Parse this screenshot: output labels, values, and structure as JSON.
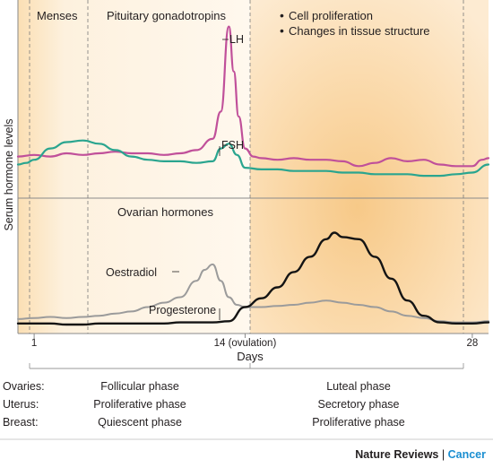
{
  "chart_data": {
    "type": "line",
    "ylabel": "Serum hormone levels",
    "xlabel": "Days",
    "x_ticks": [
      {
        "day": 1,
        "label": "1"
      },
      {
        "day": 14,
        "label": "14 (ovulation)"
      },
      {
        "day": 28,
        "label": "28"
      }
    ],
    "xlim": [
      0,
      29
    ],
    "period_labels": [
      "Menses",
      "Pituitary gonadotropins"
    ],
    "legend": [
      {
        "label": "Cell proliferation",
        "bullet": "•"
      },
      {
        "label": "Changes in tissue structure",
        "bullet": "•"
      }
    ],
    "panels": [
      {
        "title": "",
        "ylim": [
          0,
          100
        ],
        "series": [
          {
            "name": "LH",
            "color": "#c0509a",
            "x": [
              0,
              1,
              2,
              3,
              4,
              5,
              6,
              7,
              8,
              9,
              10,
              11,
              12,
              12.5,
              13,
              13.3,
              13.6,
              14,
              14.5,
              15,
              16,
              17,
              18,
              19,
              20,
              21,
              22,
              23,
              24,
              25,
              26,
              27,
              28,
              28.6,
              29
            ],
            "y": [
              17,
              18,
              17,
              19,
              18,
              19,
              20,
              19,
              19,
              18,
              19,
              21,
              28,
              45,
              98,
              70,
              42,
              22,
              17,
              16,
              15,
              16,
              15,
              15,
              14,
              11,
              13,
              16,
              14,
              15,
              12,
              11,
              11,
              15,
              16
            ]
          },
          {
            "name": "FSH",
            "color": "#2aa58f",
            "x": [
              0,
              0.5,
              1,
              2,
              3,
              4,
              5,
              6,
              7,
              8,
              9,
              10,
              11,
              12,
              12.5,
              13,
              13.5,
              14,
              15,
              16,
              17,
              18,
              19,
              20,
              21,
              22,
              23,
              24,
              25,
              26,
              27,
              28,
              29
            ],
            "y": [
              12,
              13,
              15,
              22,
              26,
              27,
              25,
              21,
              17,
              15,
              14,
              14,
              13,
              14,
              22,
              25,
              18,
              10,
              9,
              9,
              8,
              8,
              8,
              7,
              7,
              6,
              6,
              6,
              5,
              5,
              6,
              7,
              12
            ]
          }
        ]
      },
      {
        "title": "Ovarian hormones",
        "ylim": [
          0,
          100
        ],
        "series": [
          {
            "name": "Oestradiol",
            "color": "#9b9b9b",
            "x": [
              0,
              1,
              2,
              3,
              4,
              5,
              6,
              7,
              8,
              9,
              10,
              11,
              11.5,
              12,
              12.5,
              13,
              13.5,
              14,
              15,
              16,
              17,
              18,
              19,
              20,
              21,
              22,
              23,
              24,
              25,
              26,
              27,
              28,
              29
            ],
            "y": [
              5,
              6,
              7,
              6,
              7,
              8,
              10,
              12,
              16,
              20,
              25,
              40,
              50,
              55,
              40,
              25,
              18,
              16,
              16,
              17,
              18,
              20,
              22,
              20,
              18,
              16,
              12,
              8,
              6,
              3,
              2,
              2,
              3
            ]
          },
          {
            "name": "Progesterone",
            "color": "#141414",
            "x": [
              0,
              1,
              2,
              3,
              4,
              5,
              6,
              7,
              8,
              9,
              10,
              11,
              12,
              13,
              14,
              15,
              16,
              17,
              18,
              19,
              19.5,
              20,
              21,
              22,
              23,
              24,
              25,
              26,
              27,
              28,
              29
            ],
            "y": [
              1,
              1,
              1,
              0,
              0,
              1,
              1,
              1,
              1,
              1,
              2,
              2,
              2,
              3,
              16,
              24,
              34,
              48,
              62,
              78,
              84,
              80,
              78,
              62,
              42,
              22,
              8,
              2,
              1,
              1,
              2
            ]
          }
        ]
      }
    ],
    "phases": [
      {
        "organ": "Ovaries:",
        "early": "Follicular phase",
        "late": "Luteal phase"
      },
      {
        "organ": "Uterus:",
        "early": "Proliferative phase",
        "late": "Secretory phase"
      },
      {
        "organ": "Breast:",
        "early": "Quiescent phase",
        "late": "Proliferative phase"
      }
    ]
  },
  "brand": {
    "journal": "Nature Reviews",
    "separator": "|",
    "subject": "Cancer"
  }
}
